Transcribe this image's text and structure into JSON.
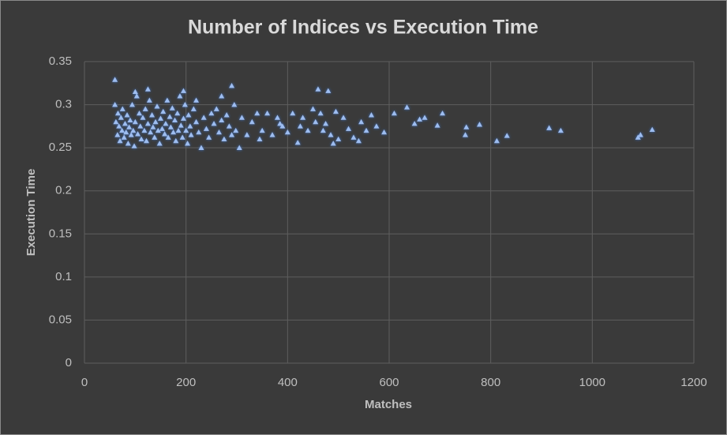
{
  "chart_data": {
    "type": "scatter",
    "title": "Number of Indices vs Execution Time",
    "xlabel": "Matches",
    "ylabel": "Execution Time",
    "color": "#9dbdf0",
    "grid": true,
    "xlim": [
      0,
      1200
    ],
    "xticks": [
      0,
      200,
      400,
      600,
      800,
      1000,
      1200
    ],
    "ylim": [
      0,
      0.35
    ],
    "yticks": [
      0,
      0.05,
      0.1,
      0.15,
      0.2,
      0.25,
      0.3,
      0.35
    ],
    "x": [
      60,
      60,
      290,
      460,
      480,
      195,
      125,
      100,
      270,
      220,
      610,
      635,
      650,
      660,
      670,
      695,
      705,
      750,
      752,
      778,
      812,
      832,
      915,
      938,
      1090,
      1095,
      1118,
      305,
      310,
      320,
      330,
      340,
      350,
      360,
      370,
      380,
      390,
      400,
      410,
      420,
      425,
      430,
      440,
      450,
      455,
      465,
      470,
      475,
      485,
      490,
      495,
      510,
      520,
      530,
      540,
      545,
      555,
      565,
      575,
      590,
      500,
      345,
      385,
      62,
      65,
      66,
      68,
      70,
      72,
      74,
      75,
      78,
      80,
      82,
      84,
      86,
      88,
      90,
      92,
      94,
      96,
      98,
      100,
      103,
      105,
      108,
      110,
      112,
      115,
      118,
      120,
      122,
      125,
      128,
      130,
      133,
      135,
      138,
      140,
      143,
      145,
      148,
      150,
      153,
      155,
      158,
      160,
      163,
      165,
      168,
      170,
      173,
      175,
      178,
      180,
      183,
      185,
      188,
      190,
      193,
      195,
      198,
      200,
      203,
      205,
      208,
      210,
      215,
      220,
      225,
      230,
      235,
      240,
      245,
      250,
      255,
      260,
      265,
      270,
      275,
      280,
      285,
      290,
      295,
      298
    ],
    "values": [
      0.329,
      0.3,
      0.322,
      0.318,
      0.316,
      0.316,
      0.318,
      0.315,
      0.31,
      0.305,
      0.29,
      0.297,
      0.278,
      0.283,
      0.285,
      0.276,
      0.29,
      0.265,
      0.274,
      0.277,
      0.258,
      0.264,
      0.273,
      0.27,
      0.262,
      0.265,
      0.271,
      0.25,
      0.285,
      0.265,
      0.28,
      0.29,
      0.27,
      0.29,
      0.265,
      0.285,
      0.275,
      0.268,
      0.29,
      0.256,
      0.275,
      0.285,
      0.27,
      0.295,
      0.28,
      0.29,
      0.27,
      0.278,
      0.265,
      0.255,
      0.292,
      0.285,
      0.272,
      0.262,
      0.258,
      0.28,
      0.27,
      0.288,
      0.275,
      0.268,
      0.26,
      0.26,
      0.278,
      0.28,
      0.265,
      0.29,
      0.275,
      0.258,
      0.285,
      0.27,
      0.295,
      0.262,
      0.278,
      0.268,
      0.288,
      0.255,
      0.274,
      0.282,
      0.265,
      0.3,
      0.27,
      0.252,
      0.28,
      0.31,
      0.266,
      0.29,
      0.275,
      0.26,
      0.285,
      0.27,
      0.295,
      0.258,
      0.278,
      0.305,
      0.268,
      0.288,
      0.274,
      0.262,
      0.28,
      0.298,
      0.27,
      0.255,
      0.284,
      0.272,
      0.292,
      0.266,
      0.278,
      0.305,
      0.262,
      0.286,
      0.274,
      0.296,
      0.268,
      0.282,
      0.258,
      0.29,
      0.27,
      0.31,
      0.276,
      0.262,
      0.284,
      0.3,
      0.27,
      0.255,
      0.288,
      0.275,
      0.265,
      0.295,
      0.28,
      0.268,
      0.25,
      0.285,
      0.272,
      0.262,
      0.29,
      0.278,
      0.295,
      0.268,
      0.282,
      0.26,
      0.288,
      0.275,
      0.265,
      0.3,
      0.27
    ]
  }
}
